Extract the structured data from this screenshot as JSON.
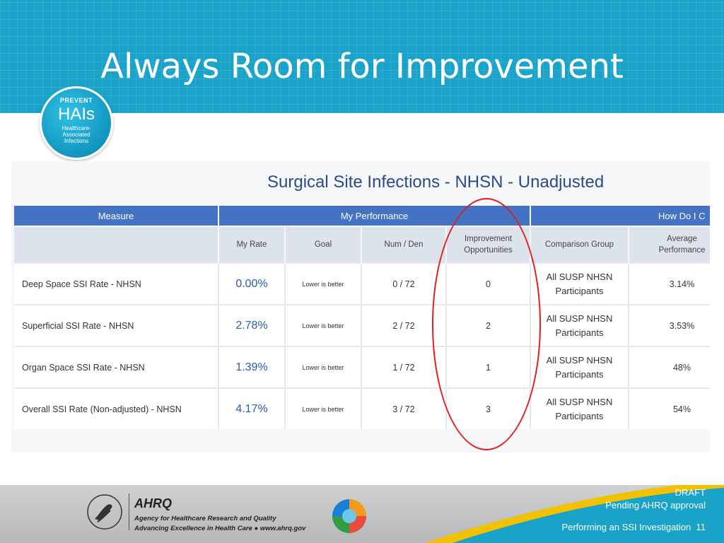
{
  "slide": {
    "title": "Always Room for Improvement"
  },
  "badge": {
    "top": "PREVENT",
    "main": "HAIs",
    "sub_line1": "Healthcare-",
    "sub_line2": "Associated",
    "sub_line3": "Infections"
  },
  "report": {
    "title": "Surgical Site Infections - NHSN - Unadjusted",
    "group_headers": {
      "measure": "Measure",
      "performance": "My Performance",
      "compare": "How Do I C"
    },
    "columns": {
      "my_rate": "My Rate",
      "goal": "Goal",
      "num_den": "Num / Den",
      "improvement_1": "Improvement",
      "improvement_2": "Opportunities",
      "comparison": "Comparison Group",
      "average_1": "Average",
      "average_2": "Performance"
    },
    "rows": [
      {
        "measure": "Deep Space SSI Rate - NHSN",
        "rate": "0.00%",
        "goal": "Lower is better",
        "num_den": "0 / 72",
        "opportunities": "0",
        "comparison_1": "All SUSP NHSN",
        "comparison_2": "Participants",
        "average": "3.14%"
      },
      {
        "measure": "Superficial SSI Rate - NHSN",
        "rate": "2.78%",
        "goal": "Lower is better",
        "num_den": "2 / 72",
        "opportunities": "2",
        "comparison_1": "All SUSP NHSN",
        "comparison_2": "Participants",
        "average": "3.53%"
      },
      {
        "measure": "Organ Space SSI Rate - NHSN",
        "rate": "1.39%",
        "goal": "Lower is better",
        "num_den": "1 / 72",
        "opportunities": "1",
        "comparison_1": "All SUSP NHSN",
        "comparison_2": "Participants",
        "average": "48%"
      },
      {
        "measure": "Overall SSI Rate (Non-adjusted) - NHSN",
        "rate": "4.17%",
        "goal": "Lower is better",
        "num_den": "3 / 72",
        "opportunities": "3",
        "comparison_1": "All SUSP NHSN",
        "comparison_2": "Participants",
        "average": "54%"
      }
    ]
  },
  "footer": {
    "ahrq_logo": "AHRQ",
    "ahrq_name": "Agency for Healthcare Research and Quality",
    "ahrq_tagline": "Advancing Excellence in Health Care ● www.ahrq.gov",
    "draft": "DRAFT",
    "pending": "Pending AHRQ approval",
    "title": "Performing an SSI Investigation",
    "page": "11"
  },
  "colors": {
    "header": "#1aa3c9",
    "table_header": "#4472c4",
    "report_title": "#2a4a8c",
    "annotation": "#e02020"
  }
}
